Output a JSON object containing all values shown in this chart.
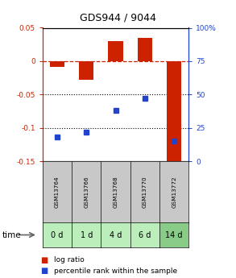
{
  "title": "GDS944 / 9044",
  "samples": [
    "GSM13764",
    "GSM13766",
    "GSM13768",
    "GSM13770",
    "GSM13772"
  ],
  "time_labels": [
    "0 d",
    "1 d",
    "4 d",
    "6 d",
    "14 d"
  ],
  "log_ratio": [
    -0.008,
    -0.028,
    0.03,
    0.035,
    -0.155
  ],
  "percentile_rank": [
    18,
    22,
    38,
    47,
    15
  ],
  "ylim_left": [
    -0.15,
    0.05
  ],
  "ylim_right": [
    0,
    100
  ],
  "bar_color": "#cc2200",
  "dot_color": "#2244cc",
  "dotted_lines": [
    -0.05,
    -0.1
  ],
  "right_ticks": [
    0,
    25,
    50,
    75,
    100
  ],
  "right_tick_labels": [
    "0",
    "25",
    "50",
    "75",
    "100%"
  ],
  "left_ticks": [
    0.05,
    0,
    -0.05,
    -0.1,
    -0.15
  ],
  "left_tick_labels": [
    "0.05",
    "0",
    "-0.05",
    "-0.1",
    "-0.15"
  ],
  "bg_color_gsm": "#c8c8c8",
  "bg_color_time_all": "#bbeebb",
  "bg_color_time_last": "#88cc88",
  "time_label": "time"
}
